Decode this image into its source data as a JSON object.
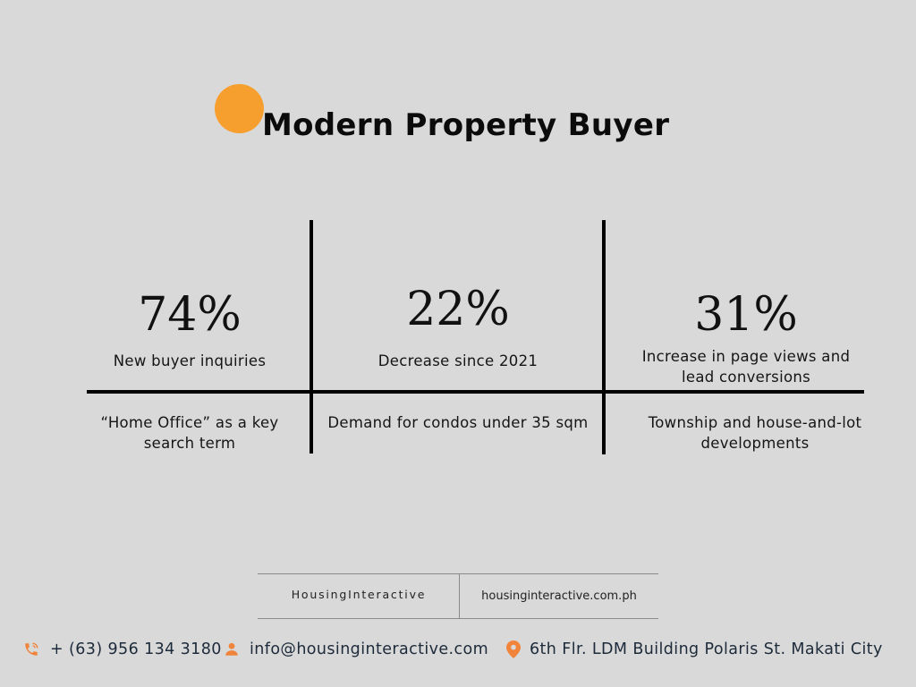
{
  "header": {
    "title": "Modern Property Buyer",
    "accent_color": "#f79f2e"
  },
  "stats": [
    {
      "value": "74%",
      "label": "New buyer inquiries"
    },
    {
      "value": "22%",
      "label": "Decrease since 2021"
    },
    {
      "value": "31%",
      "label": "Increase in page views and lead conversions"
    }
  ],
  "details": [
    "“Home Office” as a key search term",
    "Demand for condos under 35 sqm",
    "Township and house-and-lot developments"
  ],
  "footer_box": {
    "brand": "HousingInteractive",
    "website": "housinginteractive.com.ph"
  },
  "contacts": {
    "phone": "+ (63) 956 134 3180",
    "email": "info@housinginteractive.com",
    "address": "6th Flr. LDM Building Polaris St. Makati City",
    "icon_color": "#f0843a",
    "phone_icon": "phone-icon",
    "email_icon": "person-icon",
    "address_icon": "location-pin-icon"
  }
}
